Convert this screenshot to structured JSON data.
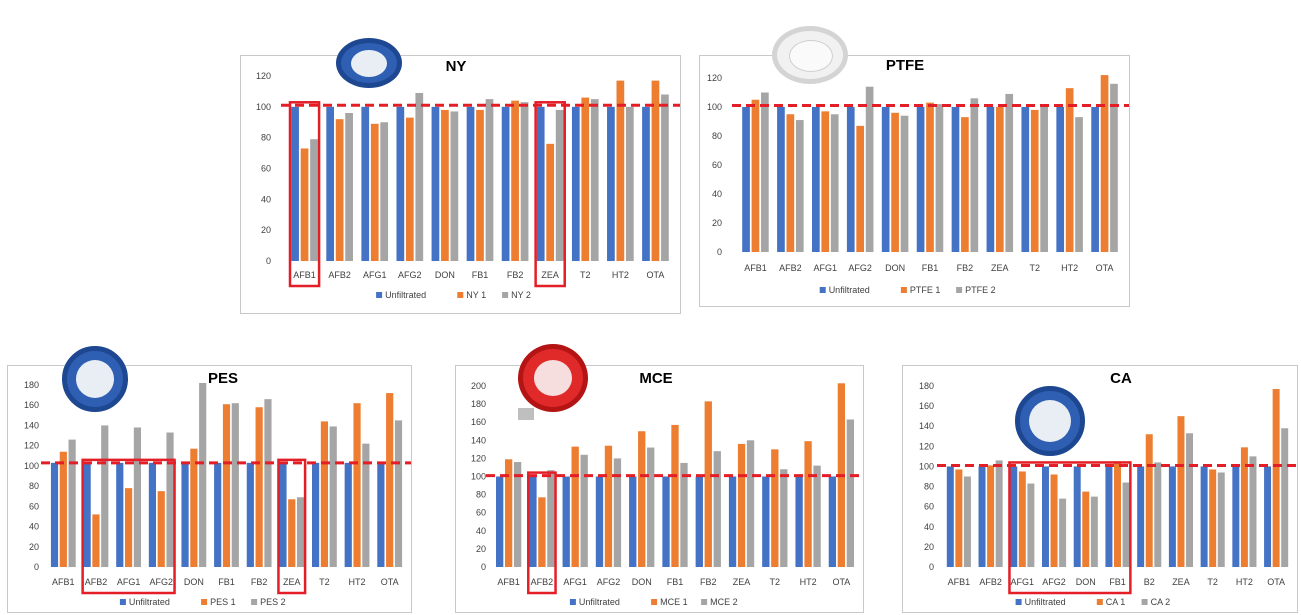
{
  "colors": {
    "unfiltered": "#4472c4",
    "series1": "#ed7d31",
    "series2": "#a5a5a5",
    "reference_line": "#e41e26",
    "highlight_box": "#e41e26",
    "axis_text": "#404040",
    "gridline": "#d9d9d9"
  },
  "chart_data": [
    {
      "id": "ny",
      "type": "bar",
      "title": "NY",
      "categories": [
        "AFB1",
        "AFB2",
        "AFG1",
        "AFG2",
        "DON",
        "FB1",
        "FB2",
        "ZEA",
        "T2",
        "HT2",
        "OTA"
      ],
      "series": [
        {
          "name": "Unfiltrated",
          "values": [
            100,
            100,
            100,
            100,
            100,
            100,
            100,
            100,
            100,
            100,
            100
          ]
        },
        {
          "name": "NY 1",
          "values": [
            73,
            92,
            89,
            93,
            98,
            98,
            104,
            76,
            106,
            117,
            117
          ]
        },
        {
          "name": "NY 2",
          "values": [
            79,
            96,
            90,
            109,
            97,
            105,
            103,
            98,
            105,
            100,
            108
          ]
        }
      ],
      "reference_line": 101,
      "ylim": [
        0,
        120
      ],
      "yticks": [
        0,
        20,
        40,
        60,
        80,
        100,
        120
      ],
      "icon": "syringe-filter-blue-icon",
      "highlight_groups": [
        [
          0,
          0
        ],
        [
          7,
          7
        ]
      ]
    },
    {
      "id": "ptfe",
      "type": "bar",
      "title": "PTFE",
      "categories": [
        "AFB1",
        "AFB2",
        "AFG1",
        "AFG2",
        "DON",
        "FB1",
        "FB2",
        "ZEA",
        "T2",
        "HT2",
        "OTA"
      ],
      "series": [
        {
          "name": "Unfiltrated",
          "values": [
            100,
            100,
            100,
            100,
            100,
            100,
            100,
            100,
            100,
            100,
            100
          ]
        },
        {
          "name": "PTFE 1",
          "values": [
            105,
            95,
            97,
            87,
            96,
            103,
            93,
            100,
            98,
            113,
            122
          ]
        },
        {
          "name": "PTFE 2",
          "values": [
            110,
            91,
            95,
            114,
            94,
            102,
            106,
            109,
            102,
            93,
            116
          ]
        }
      ],
      "reference_line": 101,
      "ylim": [
        0,
        120
      ],
      "yticks": [
        0,
        20,
        40,
        60,
        80,
        100,
        120
      ],
      "icon": "syringe-filter-white-icon",
      "highlight_groups": []
    },
    {
      "id": "pes",
      "type": "bar",
      "title": "PES",
      "categories": [
        "AFB1",
        "AFB2",
        "AFG1",
        "AFG2",
        "DON",
        "FB1",
        "FB2",
        "ZEA",
        "T2",
        "HT2",
        "OTA"
      ],
      "series": [
        {
          "name": "Unfiltrated",
          "values": [
            103,
            103,
            103,
            103,
            103,
            103,
            103,
            103,
            103,
            103,
            103
          ]
        },
        {
          "name": "PES 1",
          "values": [
            114,
            52,
            78,
            75,
            117,
            161,
            158,
            67,
            144,
            162,
            172
          ]
        },
        {
          "name": "PES 2",
          "values": [
            126,
            140,
            138,
            133,
            182,
            162,
            166,
            69,
            139,
            122,
            145
          ]
        }
      ],
      "reference_line": 103,
      "ylim": [
        0,
        180
      ],
      "yticks": [
        0,
        20,
        40,
        60,
        80,
        100,
        120,
        140,
        160,
        180
      ],
      "icon": "syringe-filter-blue-icon",
      "highlight_groups": [
        [
          1,
          3
        ],
        [
          7,
          7
        ]
      ]
    },
    {
      "id": "mce",
      "type": "bar",
      "title": "MCE",
      "categories": [
        "AFB1",
        "AFB2",
        "AFG1",
        "AFG2",
        "DON",
        "FB1",
        "FB2",
        "ZEA",
        "T2",
        "HT2",
        "OTA"
      ],
      "series": [
        {
          "name": "Unfiltrated",
          "values": [
            100,
            100,
            100,
            100,
            100,
            100,
            100,
            100,
            100,
            100,
            100
          ]
        },
        {
          "name": "MCE 1",
          "values": [
            119,
            77,
            133,
            134,
            150,
            157,
            183,
            136,
            130,
            139,
            203
          ]
        },
        {
          "name": "MCE 2",
          "values": [
            116,
            107,
            124,
            120,
            132,
            115,
            128,
            140,
            108,
            112,
            163
          ]
        }
      ],
      "reference_line": 101,
      "ylim": [
        0,
        200
      ],
      "yticks": [
        0,
        20,
        40,
        60,
        80,
        100,
        120,
        140,
        160,
        180,
        200
      ],
      "icon": "syringe-filter-red-icon",
      "highlight_groups": [
        [
          1,
          1
        ]
      ]
    },
    {
      "id": "ca",
      "type": "bar",
      "title": "CA",
      "categories": [
        "AFB1",
        "AFB2",
        "AFG1",
        "AFG2",
        "DON",
        "FB1",
        "B2",
        "ZEA",
        "T2",
        "HT2",
        "OTA"
      ],
      "series": [
        {
          "name": "Unfiltrated",
          "values": [
            100,
            100,
            100,
            100,
            100,
            100,
            100,
            100,
            100,
            100,
            100
          ]
        },
        {
          "name": "CA 1",
          "values": [
            97,
            101,
            95,
            92,
            75,
            105,
            132,
            150,
            97,
            119,
            177
          ]
        },
        {
          "name": "CA 2",
          "values": [
            90,
            106,
            83,
            68,
            70,
            84,
            104,
            133,
            94,
            110,
            138
          ]
        }
      ],
      "reference_line": 101,
      "ylim": [
        0,
        180
      ],
      "yticks": [
        0,
        20,
        40,
        60,
        80,
        100,
        120,
        140,
        160,
        180
      ],
      "icon": "syringe-filter-blue-icon",
      "highlight_groups": [
        [
          2,
          5
        ]
      ]
    }
  ]
}
